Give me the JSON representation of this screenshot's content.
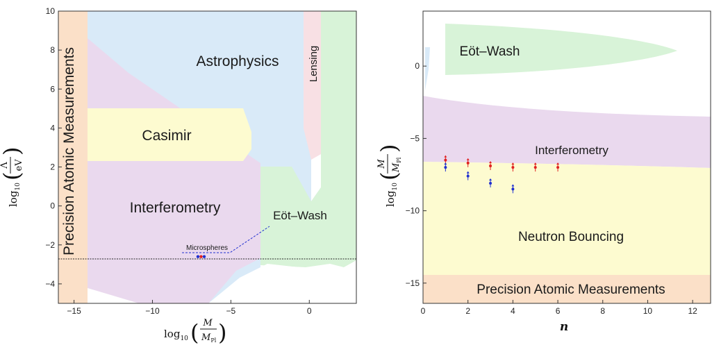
{
  "chart_data": [
    {
      "type": "area",
      "xlim": [
        -16,
        3
      ],
      "ylim": [
        -5,
        10
      ],
      "x_ticks": [
        "−15",
        "−10",
        "−5",
        "0"
      ],
      "y_ticks": [
        "−4",
        "−2",
        "0",
        "2",
        "4",
        "6",
        "8",
        "10"
      ],
      "xlabel": {
        "base": "log",
        "sub": "10",
        "num": "M",
        "den": "M",
        "den_sub": "Pl"
      },
      "ylabel": {
        "base": "log",
        "sub": "10",
        "num": "Λ",
        "den": "eV"
      },
      "regions": [
        {
          "name": "Precision Atomic Measurements",
          "color": "#fbe0c8"
        },
        {
          "name": "Astrophysics",
          "color": "#d9eaf8"
        },
        {
          "name": "Lensing",
          "color": "#f8e0e4"
        },
        {
          "name": "Casimir",
          "color": "#fdfbd0"
        },
        {
          "name": "Interferometry",
          "color": "#ead9ee"
        },
        {
          "name": "Eöt–Wash",
          "color": "#d8f3d8"
        }
      ],
      "annotation": {
        "text": "Microspheres",
        "x": -7.8,
        "y": -2.3
      },
      "reference_line_y": -2.6,
      "points": [
        {
          "x": -7.1,
          "y": -2.6,
          "color": "#2030d0"
        },
        {
          "x": -6.9,
          "y": -2.6,
          "color": "#e02020"
        },
        {
          "x": -6.7,
          "y": -2.6,
          "color": "#2030d0"
        }
      ]
    },
    {
      "type": "area",
      "xlim": [
        0,
        12.8
      ],
      "ylim": [
        -16.4,
        3.8
      ],
      "x_ticks": [
        "0",
        "2",
        "4",
        "6",
        "8",
        "10",
        "12"
      ],
      "y_ticks": [
        "−15",
        "−10",
        "−5",
        "0"
      ],
      "xlabel": "n",
      "ylabel": {
        "base": "log",
        "sub": "10",
        "num": "M",
        "den": "M",
        "den_sub": "Pl"
      },
      "regions": [
        {
          "name": "Eöt–Wash",
          "color": "#d8f3d8"
        },
        {
          "name": "Interferometry",
          "color": "#ead9ee"
        },
        {
          "name": "Neutron Bouncing",
          "color": "#fdfbd0"
        },
        {
          "name": "Precision Atomic Measurements",
          "color": "#fbe0c8"
        }
      ],
      "series": [
        {
          "color": "#e02020",
          "points": [
            [
              1,
              -6.5
            ],
            [
              2,
              -6.7
            ],
            [
              3,
              -6.9
            ],
            [
              4,
              -7.0
            ],
            [
              5,
              -7.0
            ],
            [
              6,
              -7.0
            ]
          ]
        },
        {
          "color": "#2030d0",
          "points": [
            [
              1,
              -7.0
            ],
            [
              2,
              -7.6
            ],
            [
              3,
              -8.1
            ],
            [
              4,
              -8.5
            ]
          ]
        }
      ]
    }
  ]
}
